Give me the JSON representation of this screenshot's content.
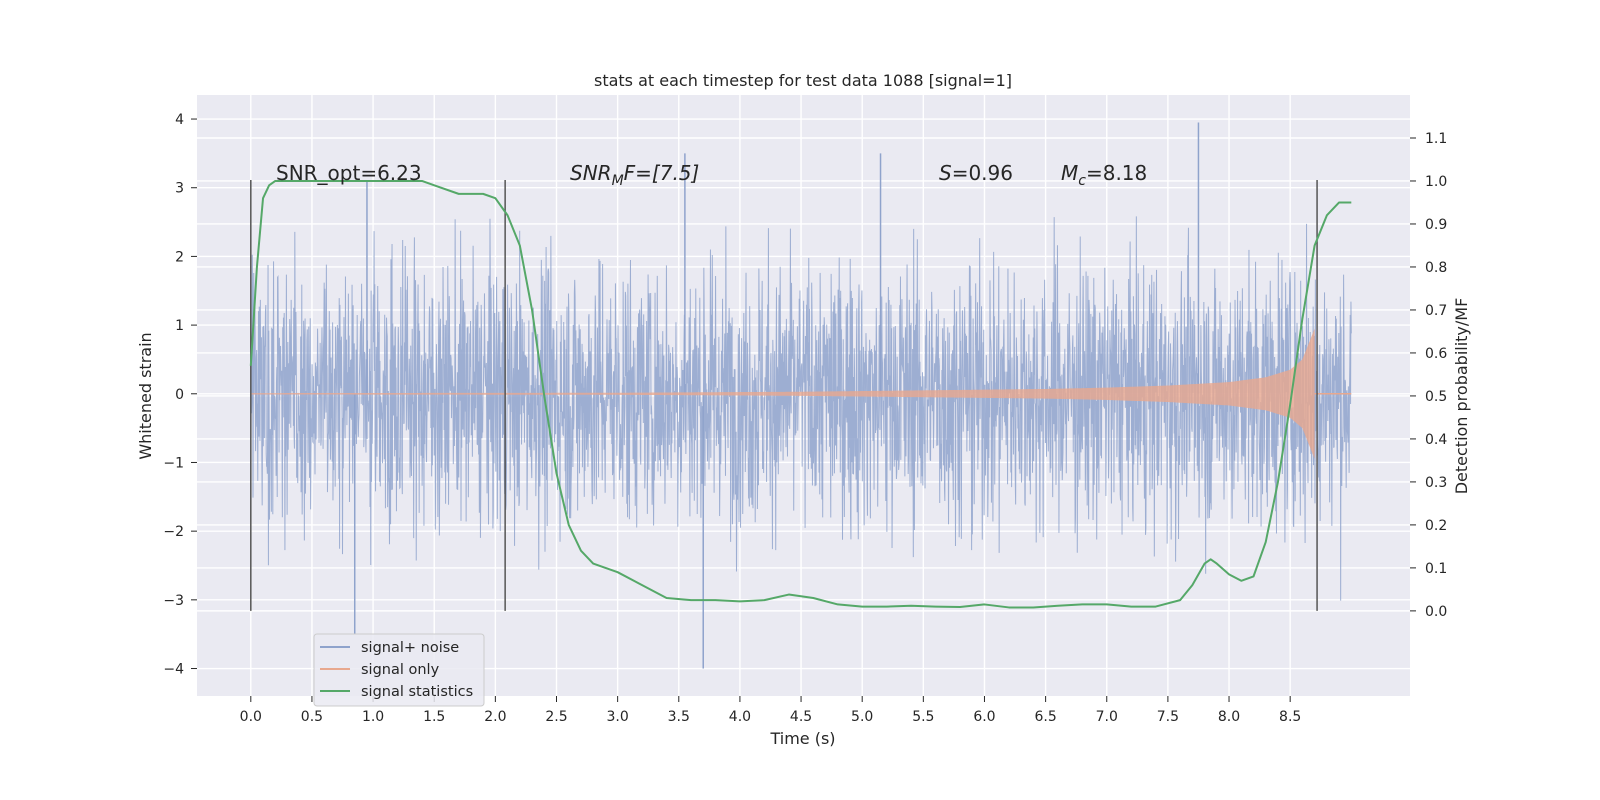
{
  "chart_data": {
    "type": "line",
    "title": "stats at each timestep for test data 1088 [signal=1]",
    "xlabel": "Time (s)",
    "ylabel_left": "Whitened strain",
    "ylabel_right": "Detection probability/MF",
    "xlim": [
      -0.44,
      9.48
    ],
    "ylim_left": [
      -4.4,
      4.35
    ],
    "ylim_right": [
      -0.198,
      1.2
    ],
    "xticks": [
      "0.0",
      "0.5",
      "1.0",
      "1.5",
      "2.0",
      "2.5",
      "3.0",
      "3.5",
      "4.0",
      "4.5",
      "5.0",
      "5.5",
      "6.0",
      "6.5",
      "7.0",
      "7.5",
      "8.0",
      "8.5"
    ],
    "yticks_left": [
      "4",
      "3",
      "2",
      "1",
      "0",
      "−1",
      "−2",
      "−3",
      "−4"
    ],
    "yticks_right": [
      "1.1",
      "1.0",
      "0.9",
      "0.8",
      "0.7",
      "0.6",
      "0.5",
      "0.4",
      "0.3",
      "0.2",
      "0.1",
      "0.0"
    ],
    "grid": true,
    "legend_position": "lower-left",
    "annotations": {
      "snr_opt": "SNR_opt=6.23",
      "snr_mf_label": "SNR",
      "snr_mf_sub": "M",
      "snr_mf_rest": "F=[7.5]",
      "s_label": "S",
      "s_value": "=0.96",
      "mc_label": "M",
      "mc_sub": "c",
      "mc_value": "=8.18"
    },
    "window_markers_x": [
      0.0,
      2.08,
      8.72
    ],
    "series": [
      {
        "name": "signal+ noise",
        "axis": "left",
        "color": "#8fa3cc",
        "description_values": "noise-like strain spanning t=0..9.0 s, amplitude mostly within ±2.5 with peaks to 3.9 and troughs to -4.0",
        "amplitude_envelope": [
          -2.5,
          2.5
        ],
        "extreme_peaks": [
          [
            0.95,
            3.1
          ],
          [
            3.55,
            3.5
          ],
          [
            5.15,
            3.5
          ],
          [
            7.75,
            3.95
          ],
          [
            3.7,
            -4.0
          ],
          [
            0.85,
            -3.5
          ]
        ]
      },
      {
        "name": "signal only",
        "axis": "left",
        "color": "#e8a88e",
        "envelope": {
          "x": [
            0.0,
            3.0,
            4.5,
            5.5,
            6.5,
            7.0,
            7.5,
            8.0,
            8.3,
            8.5,
            8.6,
            8.7
          ],
          "amp": [
            0.01,
            0.015,
            0.03,
            0.05,
            0.07,
            0.09,
            0.12,
            0.17,
            0.24,
            0.35,
            0.5,
            0.95
          ]
        }
      },
      {
        "name": "signal statistics",
        "axis": "right",
        "color": "#55a868",
        "x": [
          0.0,
          0.05,
          0.1,
          0.15,
          0.2,
          0.3,
          0.5,
          1.0,
          1.4,
          1.5,
          1.7,
          1.9,
          2.0,
          2.1,
          2.2,
          2.3,
          2.4,
          2.5,
          2.6,
          2.7,
          2.8,
          3.0,
          3.2,
          3.4,
          3.6,
          3.8,
          4.0,
          4.2,
          4.4,
          4.6,
          4.8,
          5.0,
          5.2,
          5.4,
          5.6,
          5.8,
          6.0,
          6.2,
          6.4,
          6.6,
          6.8,
          7.0,
          7.2,
          7.4,
          7.6,
          7.7,
          7.8,
          7.85,
          7.9,
          8.0,
          8.1,
          8.2,
          8.3,
          8.4,
          8.5,
          8.6,
          8.7,
          8.8,
          8.9,
          9.0
        ],
        "values": [
          0.57,
          0.8,
          0.96,
          0.99,
          1.0,
          1.0,
          1.0,
          1.0,
          1.0,
          0.99,
          0.97,
          0.97,
          0.96,
          0.92,
          0.85,
          0.7,
          0.5,
          0.32,
          0.2,
          0.14,
          0.11,
          0.09,
          0.06,
          0.03,
          0.025,
          0.025,
          0.022,
          0.025,
          0.038,
          0.03,
          0.015,
          0.01,
          0.01,
          0.012,
          0.01,
          0.009,
          0.015,
          0.008,
          0.008,
          0.012,
          0.015,
          0.015,
          0.01,
          0.01,
          0.025,
          0.06,
          0.11,
          0.12,
          0.11,
          0.085,
          0.07,
          0.08,
          0.16,
          0.3,
          0.48,
          0.68,
          0.85,
          0.92,
          0.95,
          0.95
        ]
      }
    ]
  }
}
